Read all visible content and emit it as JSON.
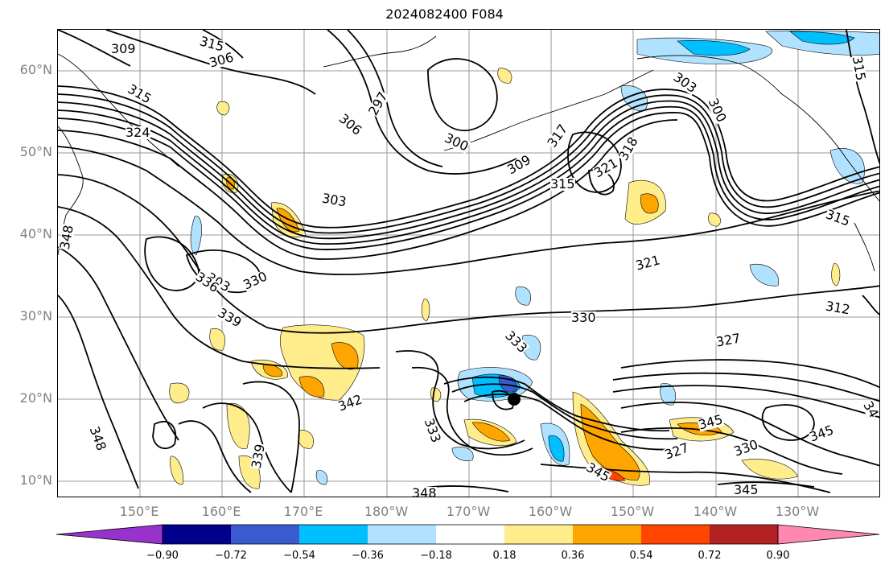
{
  "title": "2024082400 F084",
  "lat_labels": [
    "60°N",
    "50°N",
    "40°N",
    "30°N",
    "20°N",
    "10°N"
  ],
  "lon_labels": [
    "150°E",
    "160°E",
    "170°E",
    "180°W",
    "170°W",
    "160°W",
    "150°W",
    "140°W",
    "130°W"
  ],
  "colorbar": {
    "colors": [
      "#9932cc",
      "#00008b",
      "#3a5bcf",
      "#00bfff",
      "#b0e2ff",
      "#ffffff",
      "#ffec8b",
      "#ffa500",
      "#ff4500",
      "#b22222",
      "#ff88b0"
    ],
    "ticks": [
      "−0.90",
      "−0.72",
      "−0.54",
      "−0.36",
      "−0.18",
      "0.18",
      "0.36",
      "0.54",
      "0.72",
      "0.90"
    ]
  },
  "contour_labels": [
    "309",
    "315",
    "306",
    "315",
    "324",
    "297",
    "306",
    "300",
    "303",
    "317",
    "309",
    "318",
    "321",
    "315",
    "303",
    "300",
    "315",
    "303",
    "315",
    "327",
    "348",
    "336",
    "330",
    "339",
    "321",
    "330",
    "333",
    "312",
    "327",
    "342",
    "333",
    "339",
    "348",
    "345",
    "345",
    "327",
    "330",
    "345",
    "348",
    "345",
    "34"
  ]
}
